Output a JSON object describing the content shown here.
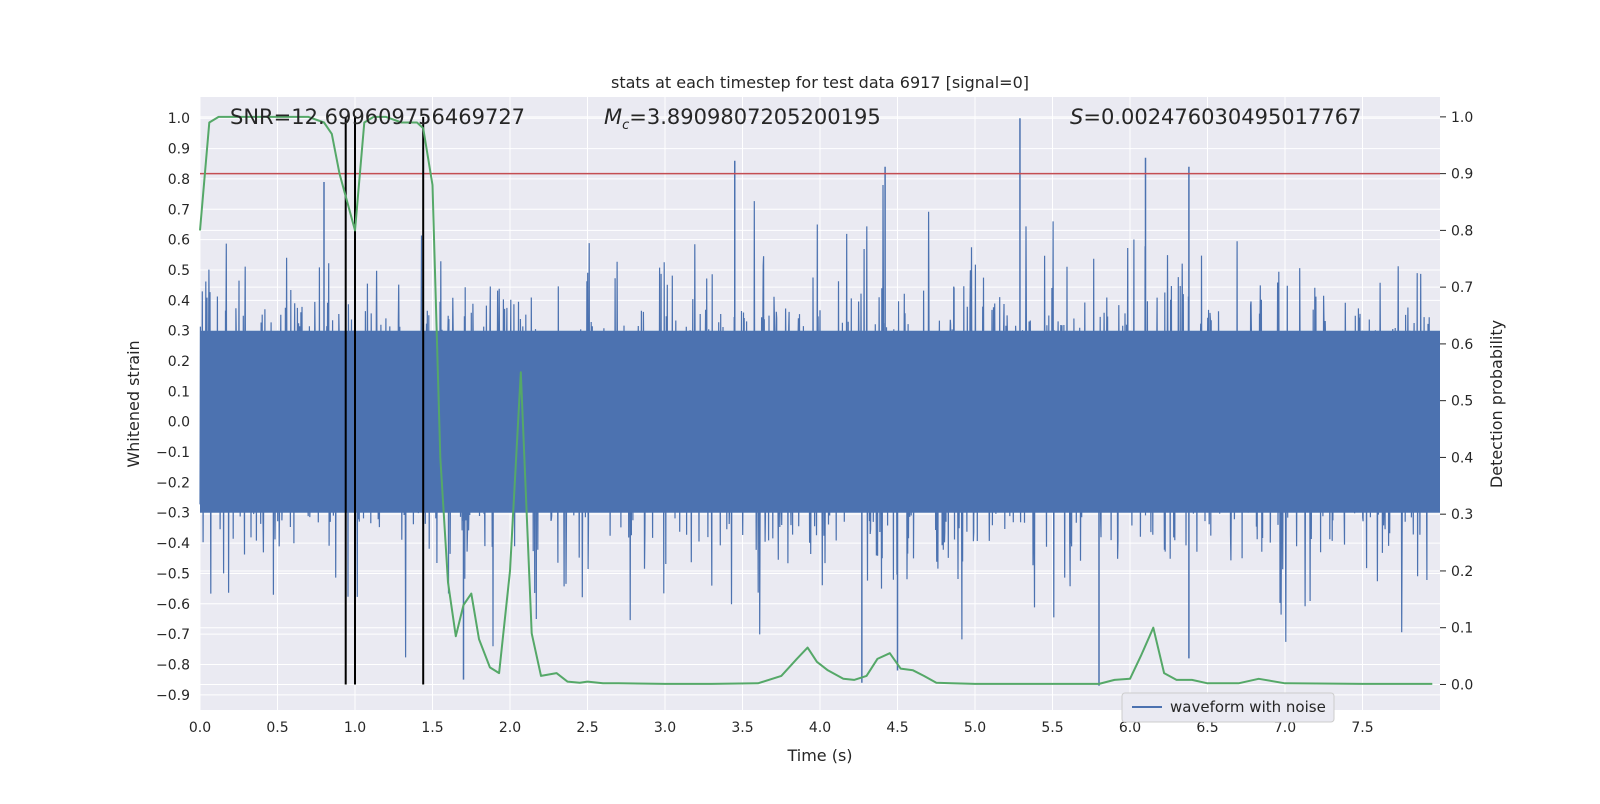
{
  "chart_data": {
    "type": "line",
    "title": "stats at each timestep for test data 6917 [signal=0]",
    "xlabel": "Time (s)",
    "ylabel": "Whitened strain",
    "ylabel_right": "Detection probability",
    "xlim": [
      0.0,
      8.0
    ],
    "ylim": [
      -0.95,
      1.07
    ],
    "ylim_right": [
      -0.045,
      1.035
    ],
    "xticks": [
      0.0,
      0.5,
      1.0,
      1.5,
      2.0,
      2.5,
      3.0,
      3.5,
      4.0,
      4.5,
      5.0,
      5.5,
      6.0,
      6.5,
      7.0,
      7.5
    ],
    "xtick_labels": [
      "0.0",
      "0.5",
      "1.0",
      "1.5",
      "2.0",
      "2.5",
      "3.0",
      "3.5",
      "4.0",
      "4.5",
      "5.0",
      "5.5",
      "6.0",
      "6.5",
      "7.0",
      "7.5"
    ],
    "yticks": [
      1.0,
      0.9,
      0.8,
      0.7,
      0.6,
      0.5,
      0.4,
      0.3,
      0.2,
      0.1,
      0.0,
      -0.1,
      -0.2,
      -0.3,
      -0.4,
      -0.5,
      -0.6,
      -0.7,
      -0.8,
      -0.9
    ],
    "ytick_labels": [
      "1.0",
      "0.9",
      "0.8",
      "0.7",
      "0.6",
      "0.5",
      "0.4",
      "0.3",
      "0.2",
      "0.1",
      "0.0",
      "−0.1",
      "−0.2",
      "−0.3",
      "−0.4",
      "−0.5",
      "−0.6",
      "−0.7",
      "−0.8",
      "−0.9"
    ],
    "yticks_right": [
      1.0,
      0.9,
      0.8,
      0.7,
      0.6,
      0.5,
      0.4,
      0.3,
      0.2,
      0.1,
      0.0
    ],
    "ytick_labels_right": [
      "1.0",
      "0.9",
      "0.8",
      "0.7",
      "0.6",
      "0.5",
      "0.4",
      "0.3",
      "0.2",
      "0.1",
      "0.0"
    ],
    "annotations": {
      "snr": "SNR=12.699609756469727",
      "mc_symbol": "M",
      "mc_sub": "c",
      "mc_value": "=3.8909807205200195",
      "s_symbol": "S",
      "s_value": "=0.002476030495017767"
    },
    "threshold_right": 0.9,
    "detection_markers_x": [
      0.94,
      1.0,
      1.44
    ],
    "legend": {
      "label": "waveform with noise",
      "position": "lower-right"
    },
    "colors": {
      "waveform": "#4c72b0",
      "probability": "#55a868",
      "threshold": "#c44e52",
      "markers": "#000000",
      "background": "#eaeaf2",
      "grid": "#ffffff"
    },
    "series": [
      {
        "name": "waveform with noise",
        "axis": "left",
        "kind": "noise",
        "core_band": [
          -0.3,
          0.3
        ],
        "typical_extent": [
          -0.6,
          0.6
        ],
        "peaks": [
          {
            "x": 5.29,
            "y": 1.0
          },
          {
            "x": 3.45,
            "y": 0.86
          },
          {
            "x": 6.1,
            "y": 0.87
          },
          {
            "x": 4.42,
            "y": 0.84
          },
          {
            "x": 6.38,
            "y": 0.84
          },
          {
            "x": 0.8,
            "y": 0.79
          },
          {
            "x": 1.7,
            "y": -0.85
          },
          {
            "x": 5.8,
            "y": -0.87
          },
          {
            "x": 4.27,
            "y": -0.86
          },
          {
            "x": 4.5,
            "y": -0.82
          },
          {
            "x": 6.38,
            "y": -0.78
          }
        ]
      },
      {
        "name": "detection probability",
        "axis": "right",
        "x": [
          0.0,
          0.06,
          0.12,
          0.2,
          0.3,
          0.4,
          0.5,
          0.6,
          0.7,
          0.8,
          0.85,
          0.9,
          0.94,
          1.0,
          1.06,
          1.12,
          1.2,
          1.3,
          1.4,
          1.44,
          1.5,
          1.55,
          1.6,
          1.65,
          1.7,
          1.75,
          1.8,
          1.87,
          1.93,
          2.0,
          2.07,
          2.14,
          2.2,
          2.3,
          2.37,
          2.45,
          2.5,
          2.6,
          2.7,
          3.0,
          3.3,
          3.6,
          3.75,
          3.85,
          3.92,
          3.98,
          4.05,
          4.15,
          4.22,
          4.3,
          4.37,
          4.45,
          4.52,
          4.6,
          4.67,
          4.75,
          4.85,
          5.0,
          5.4,
          5.8,
          5.9,
          6.0,
          6.07,
          6.15,
          6.22,
          6.3,
          6.4,
          6.5,
          6.7,
          6.83,
          7.0,
          7.5,
          7.95
        ],
        "y": [
          0.8,
          0.99,
          1.0,
          1.0,
          1.0,
          1.0,
          1.0,
          1.0,
          1.0,
          0.99,
          0.97,
          0.9,
          0.86,
          0.8,
          0.99,
          1.0,
          1.0,
          0.99,
          0.99,
          0.98,
          0.88,
          0.4,
          0.18,
          0.085,
          0.14,
          0.16,
          0.08,
          0.03,
          0.02,
          0.2,
          0.55,
          0.09,
          0.015,
          0.02,
          0.005,
          0.003,
          0.005,
          0.002,
          0.002,
          0.001,
          0.001,
          0.002,
          0.015,
          0.045,
          0.065,
          0.04,
          0.025,
          0.01,
          0.008,
          0.015,
          0.045,
          0.055,
          0.028,
          0.025,
          0.015,
          0.003,
          0.002,
          0.001,
          0.001,
          0.001,
          0.008,
          0.01,
          0.05,
          0.1,
          0.02,
          0.008,
          0.008,
          0.002,
          0.002,
          0.01,
          0.002,
          0.001,
          0.001
        ]
      }
    ]
  }
}
